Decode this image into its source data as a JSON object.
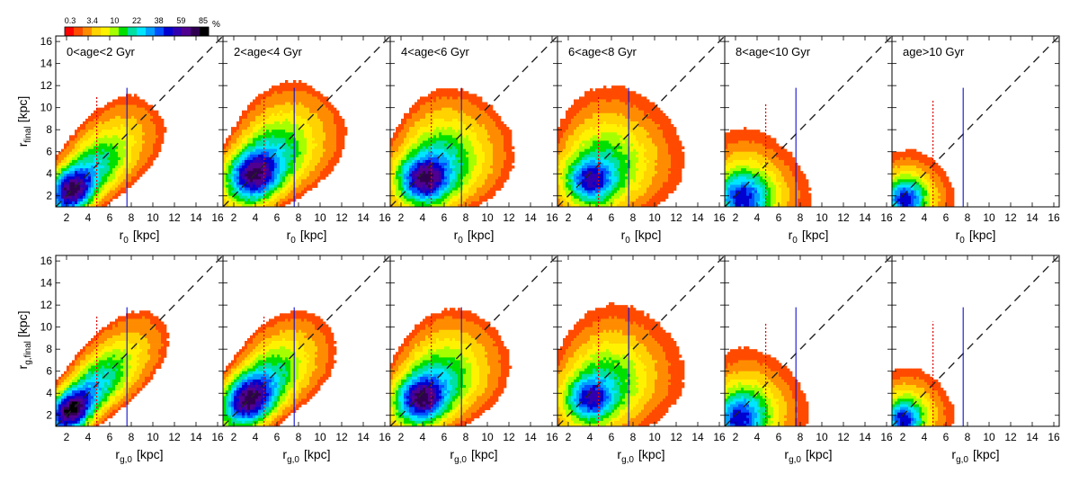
{
  "colorbar": {
    "tick_labels": [
      "0.3",
      "3.4",
      "10",
      "22",
      "38",
      "59",
      "85"
    ],
    "unit": "%",
    "colors": [
      "#ff0000",
      "#ff4a00",
      "#ff8c00",
      "#ffd200",
      "#fff200",
      "#a6ff00",
      "#00e000",
      "#00e0a0",
      "#00e6ff",
      "#00a0ff",
      "#0050ff",
      "#0000d0",
      "#3000b0",
      "#500090",
      "#300050",
      "#000000"
    ]
  },
  "axes_text": {
    "top_ylabel_main": "r",
    "top_ylabel_sub": "final",
    "top_ylabel_unit": "[kpc]",
    "bottom_ylabel_main": "r",
    "bottom_ylabel_sub": "g,final",
    "bottom_ylabel_unit": "[kpc]",
    "top_xlabel_main": "r",
    "top_xlabel_sub": "0",
    "top_xlabel_unit": "[kpc]",
    "bottom_xlabel_main": "r",
    "bottom_xlabel_sub": "g,0",
    "bottom_xlabel_unit": "[kpc]"
  },
  "chart_data": {
    "type": "heatmap",
    "xlim": [
      1,
      16.5
    ],
    "ylim": [
      1,
      16.5
    ],
    "xticks": [
      2,
      4,
      6,
      8,
      10,
      12,
      14,
      16
    ],
    "yticks": [
      2,
      4,
      6,
      8,
      10,
      12,
      14,
      16
    ],
    "reference_lines": {
      "one_to_one": "dashed",
      "red_dotted_x": 4.8,
      "blue_solid_x": 7.6
    },
    "age_bins": [
      "0<age<2 Gyr",
      "2<age<4 Gyr",
      "4<age<6 Gyr",
      "6<age<8 Gyr",
      "8<age<10 Gyr",
      "age>10 Gyr"
    ],
    "rows": [
      {
        "name": "r_final vs r_0",
        "panels": [
          {
            "peak": [
              2.6,
              2.6
            ],
            "sigma": [
              1.1,
              1.1
            ],
            "along": 4.6,
            "across": 1.25,
            "outer_radius": 14,
            "top_cut": 16.5,
            "max_level": 14
          },
          {
            "peak": [
              4.0,
              4.0
            ],
            "sigma": [
              1.3,
              1.2
            ],
            "along": 4.2,
            "across": 1.7,
            "outer_radius": 15,
            "top_cut": 16.5,
            "max_level": 14
          },
          {
            "peak": [
              4.3,
              3.6
            ],
            "sigma": [
              1.2,
              1.1
            ],
            "along": 3.8,
            "across": 2.0,
            "outer_radius": 15,
            "top_cut": 16.5,
            "max_level": 14
          },
          {
            "peak": [
              4.2,
              3.5
            ],
            "sigma": [
              1.1,
              1.0
            ],
            "along": 3.8,
            "across": 2.2,
            "outer_radius": 15,
            "top_cut": 16.5,
            "max_level": 12
          },
          {
            "peak": [
              2.6,
              1.7
            ],
            "sigma": [
              1.4,
              1.3
            ],
            "along": 2.6,
            "across": 2.1,
            "outer_radius": 12.5,
            "top_cut": 12.4,
            "max_level": 11
          },
          {
            "peak": [
              2.2,
              1.6
            ],
            "sigma": [
              1.0,
              1.0
            ],
            "along": 1.9,
            "across": 1.6,
            "outer_radius": 9.8,
            "top_cut": 10.9,
            "max_level": 11
          }
        ]
      },
      {
        "name": "r_g,final vs r_g,0",
        "panels": [
          {
            "peak": [
              2.5,
              2.5
            ],
            "sigma": [
              1.0,
              1.0
            ],
            "along": 5.0,
            "across": 1.1,
            "outer_radius": 15,
            "top_cut": 16.5,
            "max_level": 15
          },
          {
            "peak": [
              3.5,
              3.5
            ],
            "sigma": [
              1.3,
              1.3
            ],
            "along": 4.2,
            "across": 1.4,
            "outer_radius": 15,
            "top_cut": 16.5,
            "max_level": 14
          },
          {
            "peak": [
              4.0,
              3.6
            ],
            "sigma": [
              1.2,
              1.1
            ],
            "along": 3.9,
            "across": 1.8,
            "outer_radius": 15,
            "top_cut": 16.5,
            "max_level": 14
          },
          {
            "peak": [
              4.2,
              3.6
            ],
            "sigma": [
              1.1,
              1.0
            ],
            "along": 3.9,
            "across": 2.1,
            "outer_radius": 15,
            "top_cut": 16.5,
            "max_level": 12
          },
          {
            "peak": [
              2.4,
              1.7
            ],
            "sigma": [
              1.3,
              1.3
            ],
            "along": 2.7,
            "across": 2.0,
            "outer_radius": 12.8,
            "top_cut": 13.2,
            "max_level": 11
          },
          {
            "peak": [
              2.0,
              1.6
            ],
            "sigma": [
              0.9,
              0.9
            ],
            "along": 2.0,
            "across": 1.6,
            "outer_radius": 9.5,
            "top_cut": 10.5,
            "max_level": 11
          }
        ]
      }
    ]
  }
}
